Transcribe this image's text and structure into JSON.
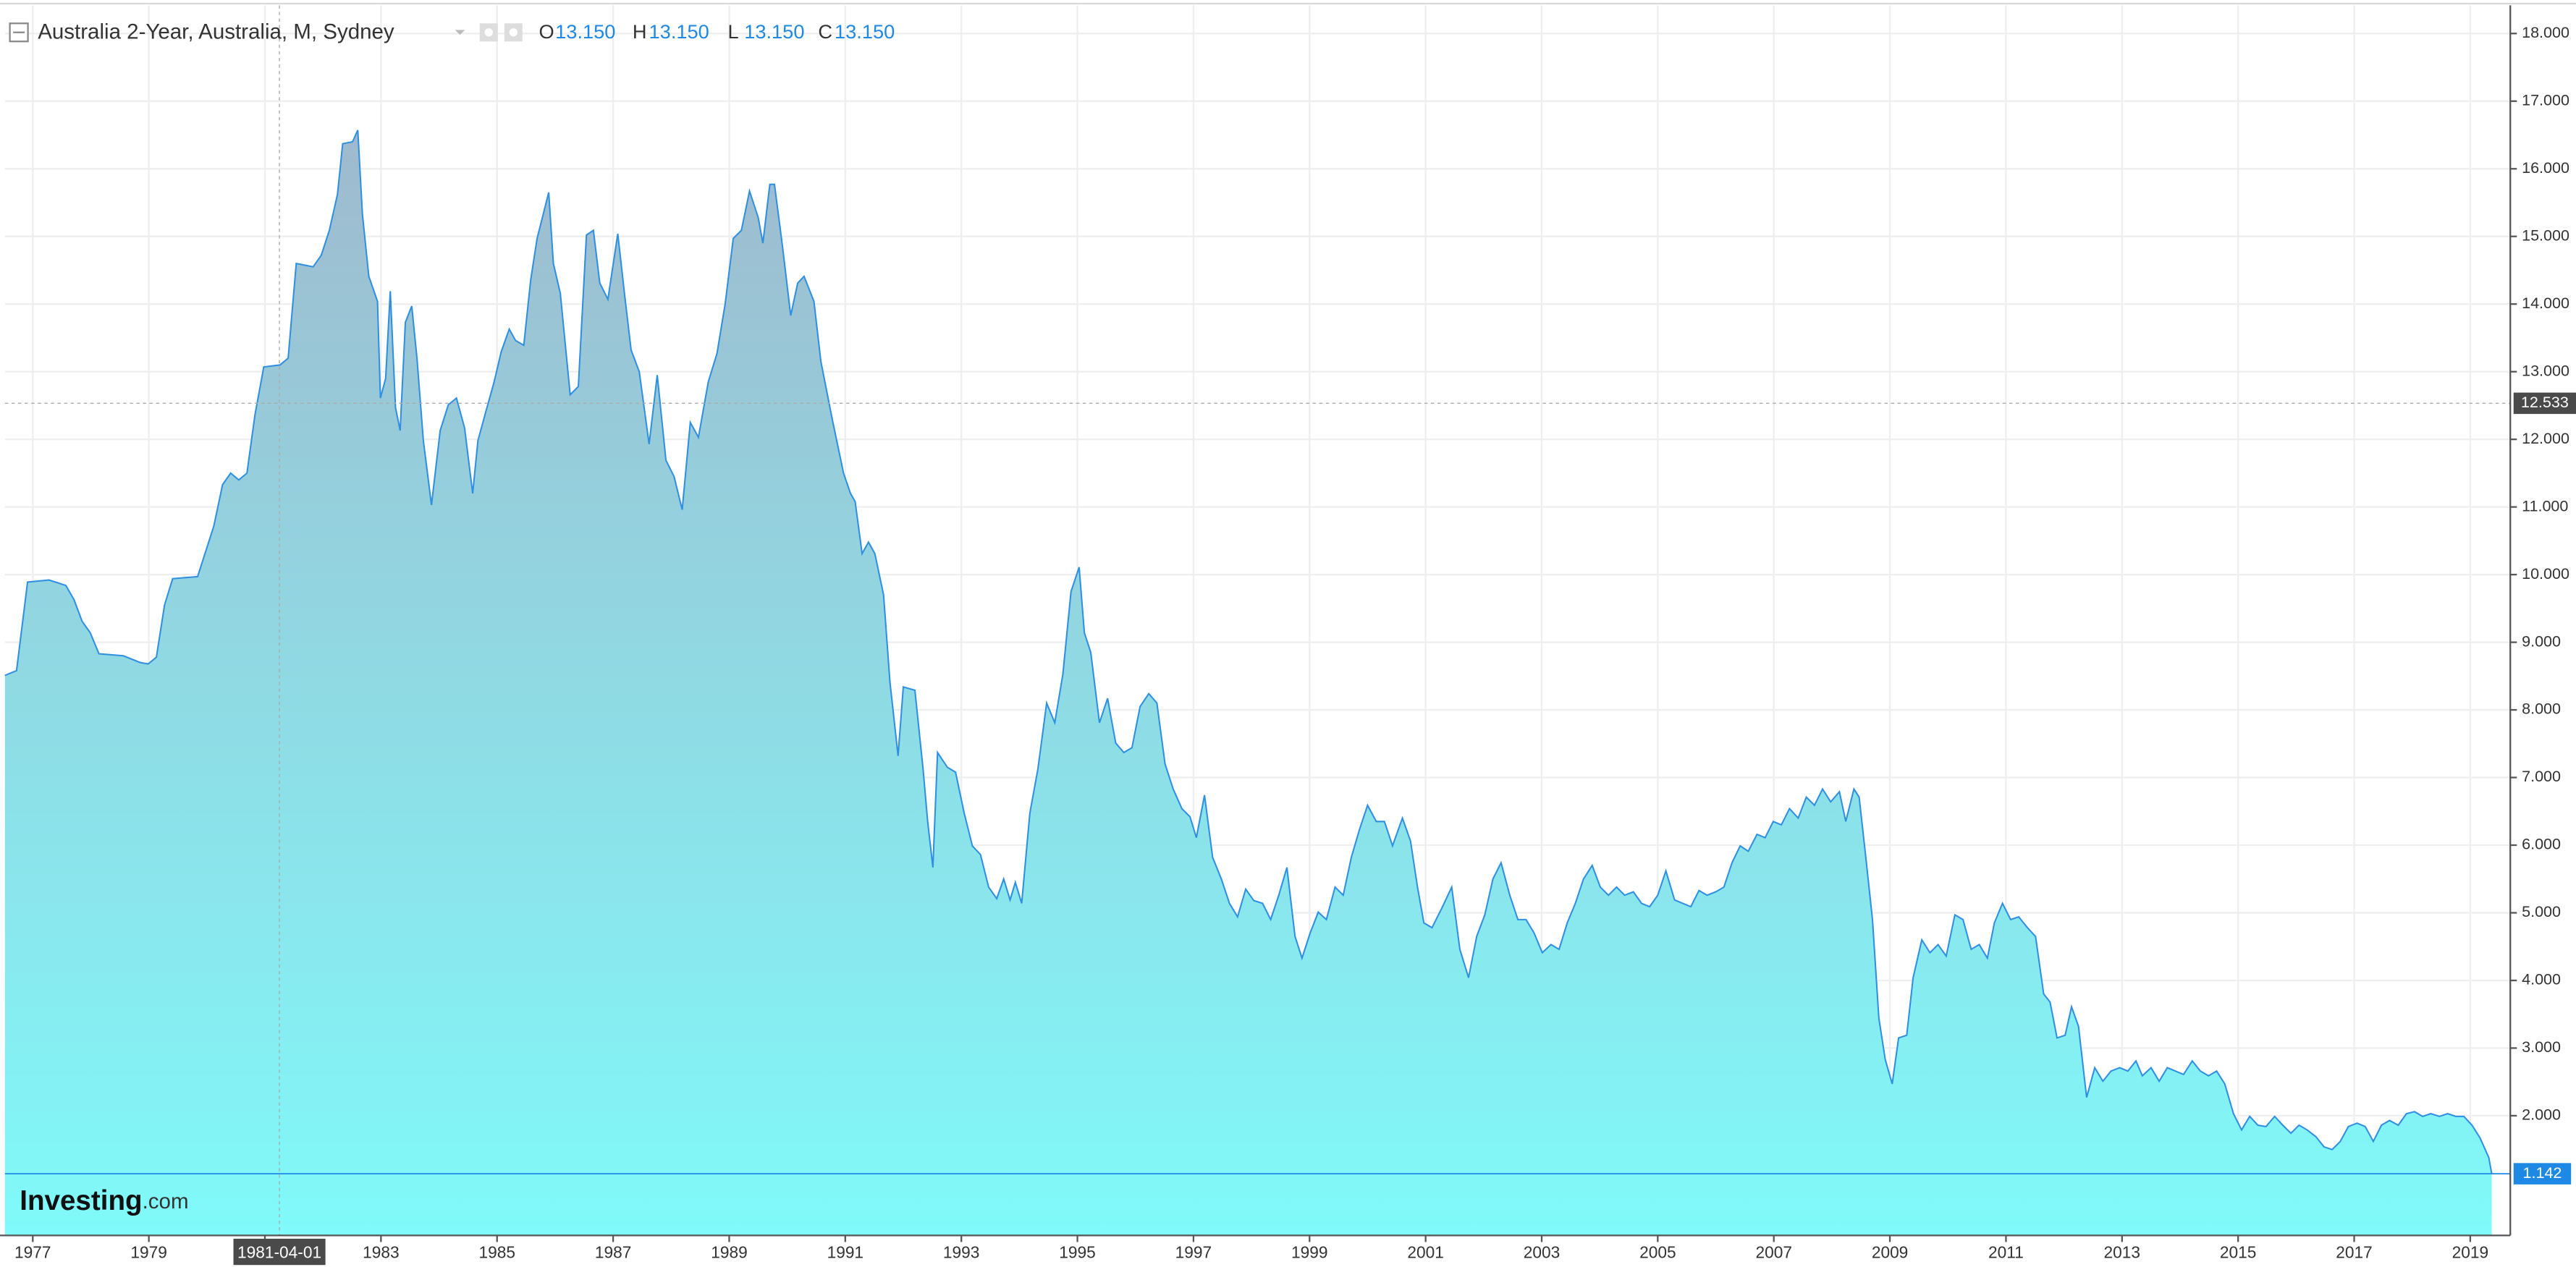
{
  "chart_data": {
    "type": "area",
    "title": "Australia 2-Year, Australia, M, Sydney",
    "ohlc": [
      {
        "key": "O",
        "value": "13.150"
      },
      {
        "key": "H",
        "value": "13.150"
      },
      {
        "key": "L",
        "value": "13.150"
      },
      {
        "key": "C",
        "value": "13.150"
      }
    ],
    "logo": [
      "Investing",
      ".com"
    ],
    "color": "#2f8fe0",
    "area_colors": [
      "#a3b2c8",
      "#80fafa"
    ],
    "grid": true,
    "crosshair": {
      "x": {
        "value": 1981.25,
        "label": "1981-04-01"
      },
      "y": 12.533
    },
    "xlim": [
      1976.52,
      2019.69
    ],
    "ylim": [
      0.23,
      18.49
    ],
    "xticks": [
      1977,
      1979,
      1981,
      1983,
      1985,
      1987,
      1989,
      1991,
      1993,
      1995,
      1997,
      1999,
      2001,
      2003,
      2005,
      2007,
      2009,
      2011,
      2013,
      2015,
      2017,
      2019
    ],
    "yticks": [
      {
        "value": 2,
        "label": "2.000"
      },
      {
        "value": 3,
        "label": "3.000"
      },
      {
        "value": 4,
        "label": "4.000"
      },
      {
        "value": 5,
        "label": "5.000"
      },
      {
        "value": 6,
        "label": "6.000"
      },
      {
        "value": 7,
        "label": "7.000"
      },
      {
        "value": 8,
        "label": "8.000"
      },
      {
        "value": 9,
        "label": "9.000"
      },
      {
        "value": 10,
        "label": "10.000"
      },
      {
        "value": 11,
        "label": "11.000"
      },
      {
        "value": 12,
        "label": "12.000"
      },
      {
        "value": 13,
        "label": "13.000"
      },
      {
        "value": 14,
        "label": "14.000"
      },
      {
        "value": 15,
        "label": "15.000"
      },
      {
        "value": 16,
        "label": "16.000"
      },
      {
        "value": 17,
        "label": "17.000"
      },
      {
        "value": 18,
        "label": "18.000"
      }
    ],
    "x": [
      1976.52,
      1976.72,
      1976.91,
      1977.28,
      1977.57,
      1977.71,
      1977.85,
      1977.99,
      1978.14,
      1978.56,
      1978.85,
      1978.99,
      1979.13,
      1979.27,
      1979.41,
      1979.84,
      1980.12,
      1980.27,
      1980.41,
      1980.55,
      1980.69,
      1980.83,
      1980.98,
      1981.26,
      1981.4,
      1981.54,
      1981.83,
      1981.97,
      1982.11,
      1982.25,
      1982.34,
      1982.51,
      1982.6,
      1982.68,
      1982.79,
      1982.94,
      1982.99,
      1983.08,
      1983.16,
      1983.25,
      1983.33,
      1983.42,
      1983.53,
      1983.62,
      1983.73,
      1983.87,
      1984.02,
      1984.16,
      1984.3,
      1984.44,
      1984.58,
      1984.67,
      1984.81,
      1984.95,
      1985.07,
      1985.21,
      1985.32,
      1985.46,
      1985.58,
      1985.69,
      1985.89,
      1985.97,
      1986.09,
      1986.26,
      1986.4,
      1986.54,
      1986.66,
      1986.77,
      1986.91,
      1987.08,
      1987.2,
      1987.31,
      1987.45,
      1987.62,
      1987.76,
      1987.91,
      1988.05,
      1988.19,
      1988.33,
      1988.47,
      1988.64,
      1988.79,
      1988.93,
      1989.07,
      1989.21,
      1989.35,
      1989.5,
      1989.58,
      1989.7,
      1989.78,
      1989.92,
      1990.06,
      1990.18,
      1990.29,
      1990.46,
      1990.58,
      1990.77,
      1990.97,
      1991.09,
      1991.17,
      1991.29,
      1991.4,
      1991.51,
      1991.66,
      1991.77,
      1991.91,
      1992.0,
      1992.2,
      1992.34,
      1992.42,
      1992.51,
      1992.59,
      1992.76,
      1992.9,
      1993.05,
      1993.19,
      1993.33,
      1993.47,
      1993.61,
      1993.73,
      1993.84,
      1993.93,
      1994.04,
      1994.18,
      1994.32,
      1994.47,
      1994.61,
      1994.75,
      1994.89,
      1995.03,
      1995.12,
      1995.23,
      1995.38,
      1995.52,
      1995.66,
      1995.8,
      1995.94,
      1996.08,
      1996.23,
      1996.37,
      1996.51,
      1996.65,
      1996.8,
      1996.94,
      1997.05,
      1997.19,
      1997.33,
      1997.48,
      1997.62,
      1997.76,
      1997.9,
      1998.04,
      1998.19,
      1998.33,
      1998.47,
      1998.61,
      1998.75,
      1998.87,
      1999.01,
      1999.15,
      1999.29,
      1999.44,
      1999.58,
      1999.72,
      1999.86,
      2000.0,
      2000.15,
      2000.29,
      2000.43,
      2000.6,
      2000.74,
      2000.86,
      2000.97,
      2001.11,
      2001.28,
      2001.45,
      2001.59,
      2001.74,
      2001.88,
      2002.02,
      2002.16,
      2002.3,
      2002.45,
      2002.59,
      2002.73,
      2002.87,
      2003.01,
      2003.16,
      2003.3,
      2003.44,
      2003.58,
      2003.72,
      2003.87,
      2004.01,
      2004.15,
      2004.29,
      2004.43,
      2004.58,
      2004.72,
      2004.86,
      2005.0,
      2005.14,
      2005.29,
      2005.43,
      2005.57,
      2005.71,
      2005.85,
      2006.0,
      2006.14,
      2006.28,
      2006.42,
      2006.56,
      2006.71,
      2006.85,
      2006.99,
      2007.13,
      2007.27,
      2007.42,
      2007.56,
      2007.7,
      2007.84,
      2007.98,
      2008.13,
      2008.24,
      2008.38,
      2008.47,
      2008.58,
      2008.7,
      2008.81,
      2008.92,
      2009.04,
      2009.15,
      2009.29,
      2009.4,
      2009.55,
      2009.69,
      2009.83,
      2009.97,
      2010.12,
      2010.26,
      2010.4,
      2010.54,
      2010.68,
      2010.8,
      2010.94,
      2011.08,
      2011.22,
      2011.37,
      2011.51,
      2011.65,
      2011.76,
      2011.88,
      2012.02,
      2012.13,
      2012.25,
      2012.39,
      2012.53,
      2012.67,
      2012.81,
      2012.96,
      2013.1,
      2013.24,
      2013.35,
      2013.5,
      2013.64,
      2013.78,
      2013.92,
      2014.06,
      2014.21,
      2014.35,
      2014.49,
      2014.63,
      2014.77,
      2014.92,
      2015.06,
      2015.2,
      2015.34,
      2015.48,
      2015.63,
      2015.77,
      2015.91,
      2016.05,
      2016.19,
      2016.34,
      2016.48,
      2016.62,
      2016.76,
      2016.9,
      2017.05,
      2017.19,
      2017.33,
      2017.47,
      2017.61,
      2017.76,
      2017.9,
      2018.04,
      2018.18,
      2018.32,
      2018.47,
      2018.61,
      2018.75,
      2018.89,
      2019.03,
      2019.17,
      2019.32,
      2019.37
    ],
    "values": [
      8.51,
      8.58,
      9.89,
      9.92,
      9.84,
      9.63,
      9.31,
      9.14,
      8.83,
      8.8,
      8.7,
      8.68,
      8.78,
      9.55,
      9.94,
      9.97,
      10.72,
      11.33,
      11.5,
      11.4,
      11.5,
      12.37,
      13.07,
      13.1,
      13.2,
      14.6,
      14.55,
      14.72,
      15.09,
      15.62,
      16.37,
      16.4,
      16.57,
      15.33,
      14.41,
      14.04,
      12.61,
      12.9,
      14.19,
      12.47,
      12.13,
      13.73,
      13.97,
      13.2,
      11.98,
      11.03,
      12.13,
      12.51,
      12.61,
      12.17,
      11.2,
      11.98,
      12.42,
      12.85,
      13.29,
      13.63,
      13.46,
      13.39,
      14.36,
      14.97,
      15.65,
      14.6,
      14.16,
      12.66,
      12.78,
      15.02,
      15.09,
      14.31,
      14.07,
      15.04,
      14.12,
      13.32,
      13.0,
      11.93,
      12.95,
      11.69,
      11.45,
      10.96,
      12.25,
      12.03,
      12.85,
      13.27,
      14.0,
      14.97,
      15.09,
      15.67,
      15.28,
      14.9,
      15.77,
      15.77,
      14.84,
      13.83,
      14.31,
      14.41,
      14.04,
      13.15,
      12.32,
      11.5,
      11.2,
      11.08,
      10.31,
      10.48,
      10.31,
      9.7,
      8.41,
      7.32,
      8.34,
      8.29,
      7.13,
      6.35,
      5.67,
      7.37,
      7.15,
      7.08,
      6.47,
      5.99,
      5.86,
      5.38,
      5.21,
      5.5,
      5.19,
      5.45,
      5.14,
      6.47,
      7.13,
      8.1,
      7.81,
      8.53,
      9.75,
      10.11,
      9.14,
      8.85,
      7.81,
      8.17,
      7.51,
      7.37,
      7.44,
      8.05,
      8.24,
      8.1,
      7.2,
      6.83,
      6.54,
      6.42,
      6.11,
      6.74,
      5.82,
      5.5,
      5.14,
      4.94,
      5.35,
      5.18,
      5.14,
      4.9,
      5.26,
      5.67,
      4.65,
      4.33,
      4.7,
      5.01,
      4.9,
      5.38,
      5.26,
      5.82,
      6.23,
      6.59,
      6.35,
      6.35,
      5.99,
      6.4,
      6.06,
      5.38,
      4.85,
      4.78,
      5.07,
      5.38,
      4.46,
      4.04,
      4.65,
      4.97,
      5.5,
      5.74,
      5.26,
      4.9,
      4.9,
      4.7,
      4.41,
      4.53,
      4.46,
      4.85,
      5.14,
      5.5,
      5.7,
      5.38,
      5.26,
      5.38,
      5.26,
      5.31,
      5.14,
      5.09,
      5.26,
      5.62,
      5.19,
      5.14,
      5.09,
      5.33,
      5.26,
      5.31,
      5.38,
      5.74,
      5.99,
      5.91,
      6.16,
      6.11,
      6.35,
      6.3,
      6.54,
      6.4,
      6.71,
      6.59,
      6.83,
      6.64,
      6.79,
      6.35,
      6.83,
      6.71,
      5.86,
      4.9,
      3.44,
      2.83,
      2.47,
      3.15,
      3.19,
      4.04,
      4.6,
      4.41,
      4.53,
      4.36,
      4.97,
      4.9,
      4.46,
      4.53,
      4.33,
      4.85,
      5.14,
      4.9,
      4.94,
      4.78,
      4.65,
      3.8,
      3.68,
      3.15,
      3.19,
      3.61,
      3.32,
      2.27,
      2.71,
      2.51,
      2.66,
      2.71,
      2.66,
      2.81,
      2.59,
      2.71,
      2.51,
      2.71,
      2.66,
      2.61,
      2.81,
      2.66,
      2.59,
      2.66,
      2.47,
      2.03,
      1.79,
      1.99,
      1.86,
      1.84,
      1.99,
      1.86,
      1.74,
      1.86,
      1.79,
      1.69,
      1.54,
      1.5,
      1.62,
      1.84,
      1.89,
      1.84,
      1.62,
      1.86,
      1.93,
      1.86,
      2.03,
      2.06,
      1.99,
      2.03,
      1.99,
      2.03,
      1.99,
      1.99,
      1.86,
      1.67,
      1.38,
      1.142
    ]
  }
}
